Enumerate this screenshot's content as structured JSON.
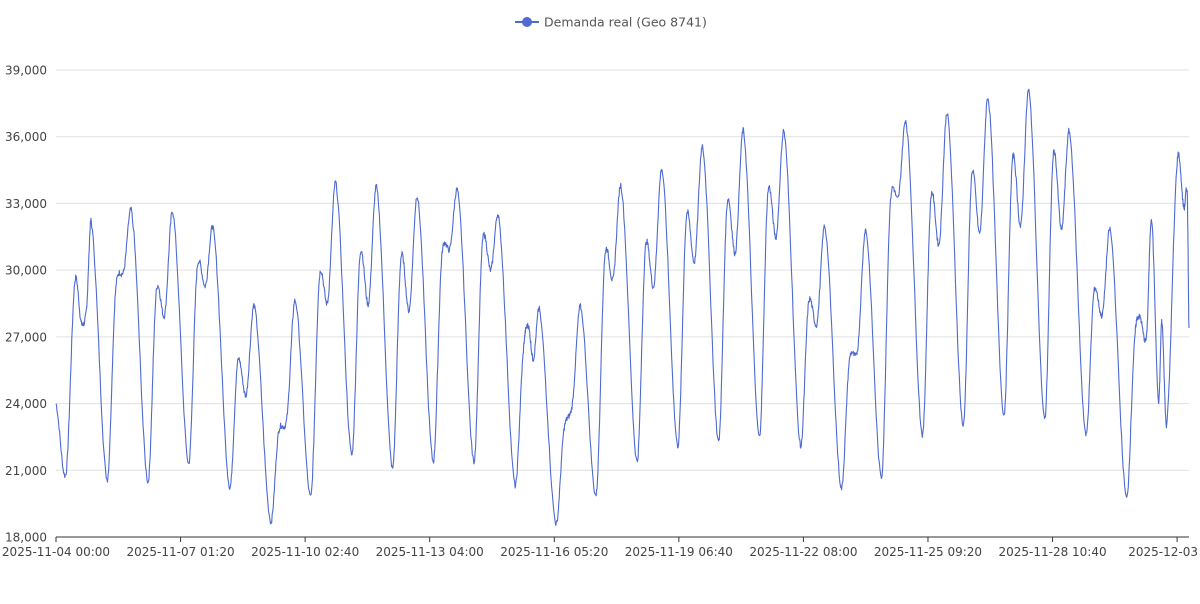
{
  "chart_data": {
    "type": "line",
    "title": "",
    "xlabel": "",
    "ylabel": "",
    "ylim": [
      18000,
      39000
    ],
    "yticks": [
      18000,
      21000,
      24000,
      27000,
      30000,
      33000,
      36000,
      39000
    ],
    "ytick_labels": [
      "18,000",
      "21,000",
      "24,000",
      "27,000",
      "30,000",
      "33,000",
      "36,000",
      "39,000"
    ],
    "xticks": [
      "2025-11-04 00:00",
      "2025-11-07 01:20",
      "2025-11-10 02:40",
      "2025-11-13 04:00",
      "2025-11-16 05:20",
      "2025-11-19 06:40",
      "2025-11-22 08:00",
      "2025-11-25 09:20",
      "2025-11-28 10:40",
      "2025-12-03"
    ],
    "grid": true,
    "legend_position": "top-center",
    "line_color": "#4e6bd1",
    "series": [
      {
        "name": "Demanda real (Geo 8741)",
        "points": [
          [
            "2025-11-04 00:00",
            24000
          ],
          [
            "2025-11-04 06:00",
            20900
          ],
          [
            "2025-11-04 11:00",
            29400
          ],
          [
            "2025-11-04 15:00",
            27600
          ],
          [
            "2025-11-04 18:00",
            28300
          ],
          [
            "2025-11-04 21:00",
            32000
          ],
          [
            "2025-11-05 06:00",
            20600
          ],
          [
            "2025-11-05 11:00",
            29000
          ],
          [
            "2025-11-05 16:00",
            30000
          ],
          [
            "2025-11-05 21:00",
            32300
          ],
          [
            "2025-11-06 06:00",
            20500
          ],
          [
            "2025-11-06 11:00",
            29000
          ],
          [
            "2025-11-06 16:00",
            28000
          ],
          [
            "2025-11-06 21:00",
            32500
          ],
          [
            "2025-11-07 06:00",
            21300
          ],
          [
            "2025-11-07 11:00",
            30000
          ],
          [
            "2025-11-07 16:00",
            29300
          ],
          [
            "2025-11-07 21:00",
            31600
          ],
          [
            "2025-11-08 06:00",
            20300
          ],
          [
            "2025-11-08 11:00",
            25900
          ],
          [
            "2025-11-08 16:00",
            24400
          ],
          [
            "2025-11-08 21:00",
            28300
          ],
          [
            "2025-11-09 06:00",
            18800
          ],
          [
            "2025-11-09 11:00",
            22700
          ],
          [
            "2025-11-09 16:00",
            23400
          ],
          [
            "2025-11-09 21:00",
            28600
          ],
          [
            "2025-11-10 06:00",
            19800
          ],
          [
            "2025-11-10 11:00",
            29600
          ],
          [
            "2025-11-10 16:00",
            28600
          ],
          [
            "2025-11-10 21:00",
            33800
          ],
          [
            "2025-11-11 06:00",
            21700
          ],
          [
            "2025-11-11 11:00",
            30700
          ],
          [
            "2025-11-11 16:00",
            28500
          ],
          [
            "2025-11-11 21:00",
            33600
          ],
          [
            "2025-11-12 06:00",
            21100
          ],
          [
            "2025-11-12 11:00",
            30500
          ],
          [
            "2025-11-12 16:00",
            28200
          ],
          [
            "2025-11-12 21:00",
            33200
          ],
          [
            "2025-11-13 06:00",
            21400
          ],
          [
            "2025-11-13 11:00",
            30500
          ],
          [
            "2025-11-13 16:00",
            31000
          ],
          [
            "2025-11-13 21:00",
            33200
          ],
          [
            "2025-11-14 06:00",
            21400
          ],
          [
            "2025-11-14 11:00",
            31200
          ],
          [
            "2025-11-14 16:00",
            30000
          ],
          [
            "2025-11-14 21:00",
            32100
          ],
          [
            "2025-11-15 06:00",
            20400
          ],
          [
            "2025-11-15 11:00",
            26200
          ],
          [
            "2025-11-15 14:00",
            27500
          ],
          [
            "2025-11-15 17:00",
            26000
          ],
          [
            "2025-11-15 21:00",
            28000
          ],
          [
            "2025-11-16 06:00",
            18700
          ],
          [
            "2025-11-16 11:00",
            22800
          ],
          [
            "2025-11-16 16:00",
            24000
          ],
          [
            "2025-11-16 21:00",
            28300
          ],
          [
            "2025-11-17 06:00",
            19900
          ],
          [
            "2025-11-17 11:00",
            30500
          ],
          [
            "2025-11-17 16:00",
            29600
          ],
          [
            "2025-11-17 21:00",
            33600
          ],
          [
            "2025-11-18 06:00",
            21400
          ],
          [
            "2025-11-18 11:00",
            31000
          ],
          [
            "2025-11-18 16:00",
            29300
          ],
          [
            "2025-11-18 21:00",
            34400
          ],
          [
            "2025-11-19 06:00",
            22100
          ],
          [
            "2025-11-19 11:00",
            32300
          ],
          [
            "2025-11-19 16:00",
            30400
          ],
          [
            "2025-11-19 21:00",
            35400
          ],
          [
            "2025-11-20 06:00",
            22300
          ],
          [
            "2025-11-20 11:00",
            32900
          ],
          [
            "2025-11-20 16:00",
            30800
          ],
          [
            "2025-11-20 21:00",
            36100
          ],
          [
            "2025-11-21 06:00",
            22500
          ],
          [
            "2025-11-21 11:00",
            33400
          ],
          [
            "2025-11-21 16:00",
            31500
          ],
          [
            "2025-11-21 21:00",
            36000
          ],
          [
            "2025-11-22 06:00",
            22200
          ],
          [
            "2025-11-22 11:00",
            28500
          ],
          [
            "2025-11-22 16:00",
            27600
          ],
          [
            "2025-11-22 21:00",
            31800
          ],
          [
            "2025-11-23 06:00",
            20300
          ],
          [
            "2025-11-23 11:00",
            25900
          ],
          [
            "2025-11-23 16:00",
            26500
          ],
          [
            "2025-11-23 21:00",
            31700
          ],
          [
            "2025-11-24 06:00",
            20700
          ],
          [
            "2025-11-24 11:00",
            32800
          ],
          [
            "2025-11-24 16:00",
            33300
          ],
          [
            "2025-11-24 21:00",
            36300
          ],
          [
            "2025-11-25 06:00",
            22600
          ],
          [
            "2025-11-25 11:00",
            33200
          ],
          [
            "2025-11-25 16:00",
            31200
          ],
          [
            "2025-11-25 21:00",
            36900
          ],
          [
            "2025-11-26 06:00",
            23000
          ],
          [
            "2025-11-26 11:00",
            34200
          ],
          [
            "2025-11-26 16:00",
            31700
          ],
          [
            "2025-11-26 21:00",
            37600
          ],
          [
            "2025-11-27 06:00",
            23500
          ],
          [
            "2025-11-27 11:00",
            34900
          ],
          [
            "2025-11-27 16:00",
            32000
          ],
          [
            "2025-11-27 21:00",
            37900
          ],
          [
            "2025-11-28 06:00",
            23300
          ],
          [
            "2025-11-28 11:00",
            35100
          ],
          [
            "2025-11-28 16:00",
            31800
          ],
          [
            "2025-11-28 21:00",
            36000
          ],
          [
            "2025-11-29 06:00",
            22700
          ],
          [
            "2025-11-29 11:00",
            29000
          ],
          [
            "2025-11-29 16:00",
            28000
          ],
          [
            "2025-11-29 21:00",
            31600
          ],
          [
            "2025-11-30 06:00",
            19800
          ],
          [
            "2025-11-30 11:00",
            26800
          ],
          [
            "2025-11-30 14:00",
            27900
          ],
          [
            "2025-11-30 18:00",
            27000
          ],
          [
            "2025-11-30 21:00",
            32300
          ],
          [
            "2025-12-01 01:00",
            24100
          ],
          [
            "2025-12-01 03:00",
            27700
          ],
          [
            "2025-12-01 06:00",
            23200
          ],
          [
            "2025-12-01 12:00",
            34800
          ],
          [
            "2025-12-01 16:00",
            32800
          ],
          [
            "2025-12-01 18:00",
            33400
          ],
          [
            "2025-12-01 19:00",
            27400
          ]
        ]
      }
    ]
  }
}
